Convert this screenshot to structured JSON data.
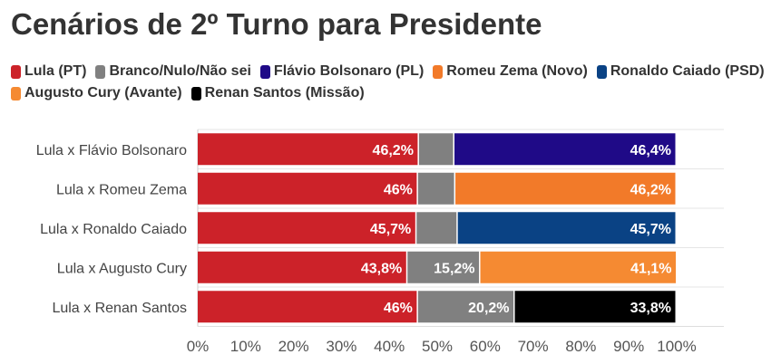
{
  "chart_data": {
    "type": "bar",
    "orientation": "horizontal",
    "stacked": true,
    "title": "Cenários de 2º Turno para Presidente",
    "categories": [
      "Lula x Flávio Bolsonaro",
      "Lula x Romeu Zema",
      "Lula x Ronaldo Caiado",
      "Lula x Augusto Cury",
      "Lula x Renan Santos"
    ],
    "legend": [
      {
        "name": "Lula (PT)",
        "color": "#cc2229"
      },
      {
        "name": "Branco/Nulo/Não sei",
        "color": "#808080"
      },
      {
        "name": "Flávio Bolsonaro (PL)",
        "color": "#1f0a87"
      },
      {
        "name": "Romeu Zema (Novo)",
        "color": "#f27a29"
      },
      {
        "name": "Ronaldo Caiado (PSD)",
        "color": "#0a4284"
      },
      {
        "name": "Augusto Cury (Avante)",
        "color": "#f58a32"
      },
      {
        "name": "Renan Santos (Missão)",
        "color": "#000000"
      }
    ],
    "rows": [
      {
        "category": "Lula x Flávio Bolsonaro",
        "segments": [
          {
            "series": "Lula (PT)",
            "value": 46.2,
            "label": "46,2%",
            "color": "#cc2229"
          },
          {
            "series": "Branco/Nulo/Não sei",
            "value": 7.4,
            "label": "",
            "color": "#808080"
          },
          {
            "series": "Flávio Bolsonaro (PL)",
            "value": 46.4,
            "label": "46,4%",
            "color": "#1f0a87"
          }
        ]
      },
      {
        "category": "Lula x Romeu Zema",
        "segments": [
          {
            "series": "Lula (PT)",
            "value": 46,
            "label": "46%",
            "color": "#cc2229"
          },
          {
            "series": "Branco/Nulo/Não sei",
            "value": 7.8,
            "label": "",
            "color": "#808080"
          },
          {
            "series": "Romeu Zema (Novo)",
            "value": 46.2,
            "label": "46,2%",
            "color": "#f27a29"
          }
        ]
      },
      {
        "category": "Lula x Ronaldo Caiado",
        "segments": [
          {
            "series": "Lula (PT)",
            "value": 45.7,
            "label": "45,7%",
            "color": "#cc2229"
          },
          {
            "series": "Branco/Nulo/Não sei",
            "value": 8.6,
            "label": "",
            "color": "#808080"
          },
          {
            "series": "Ronaldo Caiado (PSD)",
            "value": 45.7,
            "label": "45,7%",
            "color": "#0a4284"
          }
        ]
      },
      {
        "category": "Lula x Augusto Cury",
        "segments": [
          {
            "series": "Lula (PT)",
            "value": 43.8,
            "label": "43,8%",
            "color": "#cc2229"
          },
          {
            "series": "Branco/Nulo/Não sei",
            "value": 15.2,
            "label": "15,2%",
            "color": "#808080"
          },
          {
            "series": "Augusto Cury (Avante)",
            "value": 41.1,
            "label": "41,1%",
            "color": "#f58a32"
          }
        ]
      },
      {
        "category": "Lula x Renan Santos",
        "segments": [
          {
            "series": "Lula (PT)",
            "value": 46,
            "label": "46%",
            "color": "#cc2229"
          },
          {
            "series": "Branco/Nulo/Não sei",
            "value": 20.2,
            "label": "20,2%",
            "color": "#808080"
          },
          {
            "series": "Renan Santos (Missão)",
            "value": 33.8,
            "label": "33,8%",
            "color": "#000000"
          }
        ]
      }
    ],
    "xlim": [
      0,
      100
    ],
    "xticks": [
      "0%",
      "10%",
      "20%",
      "30%",
      "40%",
      "50%",
      "60%",
      "70%",
      "80%",
      "90%",
      "100%"
    ],
    "xlabel": "",
    "ylabel": "",
    "grid": true,
    "legend_position": "top"
  }
}
